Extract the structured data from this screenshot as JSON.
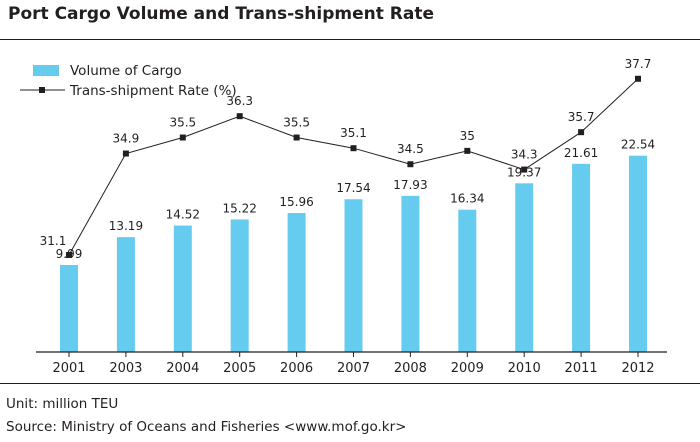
{
  "header": {
    "title": "Port Cargo Volume and Trans-shipment Rate"
  },
  "footer": {
    "unit": "Unit: million TEU",
    "source": "Source: Ministry of Oceans and Fisheries <www.mof.go.kr>"
  },
  "colors": {
    "bar": "#65cbef",
    "line": "#231f20",
    "axis": "#231f20"
  },
  "chart_data": {
    "type": "bar",
    "title": "Port Cargo Volume and Trans-shipment Rate",
    "xlabel": "",
    "ylabel": "",
    "categories": [
      "2001",
      "2003",
      "2004",
      "2005",
      "2006",
      "2007",
      "2008",
      "2009",
      "2010",
      "2011",
      "2012"
    ],
    "series": [
      {
        "name": "Volume of Cargo",
        "type": "bar",
        "values": [
          9.99,
          13.19,
          14.52,
          15.22,
          15.96,
          17.54,
          17.93,
          16.34,
          19.37,
          21.61,
          22.54
        ]
      },
      {
        "name": "Trans-shipment Rate (%)",
        "type": "line",
        "marker": "square",
        "values": [
          31.1,
          34.9,
          35.5,
          36.3,
          35.5,
          35.1,
          34.5,
          35,
          34.3,
          35.7,
          37.7
        ]
      }
    ],
    "legend_position": "top-left",
    "grid": false
  }
}
